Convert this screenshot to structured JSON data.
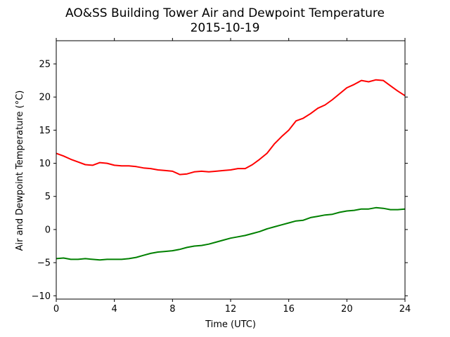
{
  "chart_data": {
    "type": "line",
    "title": "AO&SS Building Tower Air and Dewpoint Temperature",
    "subtitle": "2015-10-19",
    "xlabel": "Time (UTC)",
    "ylabel": "Air and Dewpoint Temperature (°C)",
    "xlim": [
      0,
      24
    ],
    "ylim": [
      -10.5,
      28.5
    ],
    "x_ticks": [
      0,
      4,
      8,
      12,
      16,
      20,
      24
    ],
    "y_ticks": [
      -10,
      -5,
      0,
      5,
      10,
      15,
      20,
      25
    ],
    "grid": false,
    "legend": "none",
    "series": [
      {
        "color": "#ff0000",
        "x": [
          0,
          0.5,
          1,
          1.5,
          2,
          2.5,
          3,
          3.5,
          4,
          4.5,
          5,
          5.5,
          6,
          6.5,
          7,
          7.5,
          8,
          8.5,
          9,
          9.5,
          10,
          10.5,
          11,
          11.5,
          12,
          12.5,
          13,
          13.5,
          14,
          14.5,
          15,
          15.5,
          16,
          16.5,
          17,
          17.5,
          18,
          18.5,
          19,
          19.5,
          20,
          20.5,
          21,
          21.5,
          22,
          22.5,
          23,
          23.5,
          24
        ],
        "values": [
          11.5,
          11.1,
          10.6,
          10.2,
          9.8,
          9.7,
          10.1,
          10.0,
          9.7,
          9.6,
          9.6,
          9.5,
          9.3,
          9.2,
          9.0,
          8.9,
          8.8,
          8.3,
          8.4,
          8.7,
          8.8,
          8.7,
          8.8,
          8.9,
          9.0,
          9.2,
          9.2,
          9.8,
          10.6,
          11.5,
          12.9,
          14.0,
          15.0,
          16.4,
          16.8,
          17.5,
          18.3,
          18.8,
          19.6,
          20.5,
          21.4,
          21.9,
          22.5,
          22.3,
          22.6,
          22.5,
          21.7,
          20.9,
          20.2
        ]
      },
      {
        "color": "#008000",
        "x": [
          0,
          0.5,
          1,
          1.5,
          2,
          2.5,
          3,
          3.5,
          4,
          4.5,
          5,
          5.5,
          6,
          6.5,
          7,
          7.5,
          8,
          8.5,
          9,
          9.5,
          10,
          10.5,
          11,
          11.5,
          12,
          12.5,
          13,
          13.5,
          14,
          14.5,
          15,
          15.5,
          16,
          16.5,
          17,
          17.5,
          18,
          18.5,
          19,
          19.5,
          20,
          20.5,
          21,
          21.5,
          22,
          22.5,
          23,
          23.5,
          24
        ],
        "values": [
          -4.4,
          -4.3,
          -4.5,
          -4.5,
          -4.4,
          -4.5,
          -4.6,
          -4.5,
          -4.5,
          -4.5,
          -4.4,
          -4.2,
          -3.9,
          -3.6,
          -3.4,
          -3.3,
          -3.2,
          -3.0,
          -2.7,
          -2.5,
          -2.4,
          -2.2,
          -1.9,
          -1.6,
          -1.3,
          -1.1,
          -0.9,
          -0.6,
          -0.3,
          0.1,
          0.4,
          0.7,
          1.0,
          1.3,
          1.4,
          1.8,
          2.0,
          2.2,
          2.3,
          2.6,
          2.8,
          2.9,
          3.1,
          3.1,
          3.3,
          3.2,
          3.0,
          3.0,
          3.1
        ]
      }
    ]
  }
}
